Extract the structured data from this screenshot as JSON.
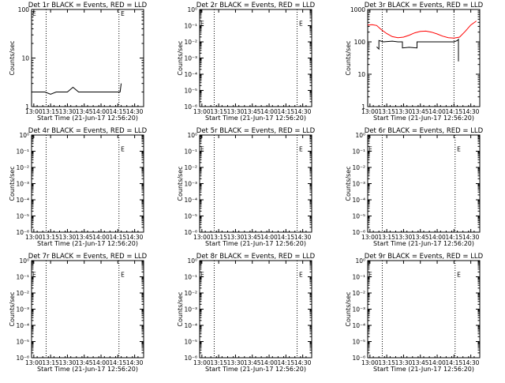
{
  "chart_data": [
    {
      "type": "line",
      "title": "Det 1r BLACK = Events, RED = LLD",
      "xlabel": "Start Time (21-Jun-17 12:56:20)",
      "ylabel": "Counts/sec",
      "xlim": [
        "12:58",
        "14:38"
      ],
      "x_ticks": [
        "13:00",
        "13:15",
        "13:30",
        "13:45",
        "14:00",
        "14:15",
        "14:30"
      ],
      "y_scale": "log",
      "ylim": [
        1,
        100
      ],
      "y_ticks": [
        "1",
        "10",
        "100"
      ],
      "vlines": [
        "13:11",
        "14:16"
      ],
      "e_markers": [
        {
          "x": "12:58",
          "y": 100
        },
        {
          "x": "14:17",
          "y": 100
        }
      ],
      "series": [
        {
          "color": "#000000",
          "x": [
            "12:58",
            "13:00",
            "13:05",
            "13:10",
            "13:15",
            "13:20",
            "13:25",
            "13:30",
            "13:35",
            "13:40",
            "13:45",
            "13:50",
            "13:55",
            "14:00",
            "14:05",
            "14:10",
            "14:15",
            "14:17",
            "14:18"
          ],
          "y": [
            2,
            2,
            2,
            2,
            1.8,
            2,
            2,
            2,
            2.5,
            2,
            2,
            2,
            2,
            2,
            2,
            2,
            2,
            2,
            3
          ]
        },
        {
          "color": "#ff0000",
          "x": [],
          "y": []
        }
      ]
    },
    {
      "type": "line",
      "title": "Det 2r BLACK = Events, RED = LLD",
      "xlabel": "Start Time (21-Jun-17 12:56:20)",
      "ylabel": "Counts/sec",
      "xlim": [
        "12:58",
        "14:38"
      ],
      "x_ticks": [
        "13:00",
        "13:15",
        "13:30",
        "13:45",
        "14:00",
        "14:15",
        "14:30"
      ],
      "y_scale": "log",
      "ylim": [
        1,
        1e-06
      ],
      "y_ticks": [
        "10⁰",
        "10⁻¹",
        "10⁻²",
        "10⁻³",
        "10⁻⁴",
        "10⁻⁵",
        "10⁻⁶"
      ],
      "vlines": [
        "13:11",
        "14:25"
      ],
      "e_markers": [
        {
          "x": "12:58",
          "y": 0.1
        },
        {
          "x": "14:26",
          "y": 0.1
        }
      ],
      "series": []
    },
    {
      "type": "line",
      "title": "Det 3r BLACK = Events, RED = LLD",
      "xlabel": "Start Time (21-Jun-17 12:56:20)",
      "ylabel": "Counts/sec",
      "xlim": [
        "12:58",
        "14:38"
      ],
      "x_ticks": [
        "13:00",
        "13:15",
        "13:30",
        "13:45",
        "14:00",
        "14:15",
        "14:30"
      ],
      "y_scale": "log",
      "ylim": [
        1,
        1000
      ],
      "y_ticks": [
        "1",
        "10",
        "100",
        "1000"
      ],
      "vlines": [
        "13:11",
        "14:15"
      ],
      "e_markers": [],
      "series": [
        {
          "color": "#000000",
          "x": [
            "13:06",
            "13:08",
            "13:08",
            "13:12",
            "13:20",
            "13:25",
            "13:29",
            "13:29",
            "13:35",
            "13:42",
            "13:42",
            "13:50",
            "14:00",
            "14:05",
            "14:10",
            "14:15",
            "14:18",
            "14:19",
            "14:19"
          ],
          "y": [
            70,
            60,
            110,
            100,
            105,
            100,
            100,
            65,
            68,
            65,
            100,
            100,
            100,
            100,
            100,
            100,
            110,
            120,
            25
          ]
        },
        {
          "color": "#ff0000",
          "x": [
            "12:58",
            "13:02",
            "13:06",
            "13:10",
            "13:15",
            "13:20",
            "13:25",
            "13:30",
            "13:35",
            "13:40",
            "13:45",
            "13:50",
            "13:55",
            "14:00",
            "14:05",
            "14:10",
            "14:15",
            "14:20",
            "14:25",
            "14:30",
            "14:35"
          ],
          "y": [
            330,
            340,
            320,
            240,
            180,
            145,
            135,
            140,
            160,
            190,
            210,
            215,
            200,
            175,
            150,
            135,
            130,
            140,
            210,
            330,
            440
          ]
        }
      ]
    },
    {
      "type": "line",
      "title": "Det 4r BLACK = Events, RED = LLD",
      "xlabel": "Start Time (21-Jun-17 12:56:20)",
      "ylabel": "Counts/sec",
      "xlim": [
        "12:58",
        "14:38"
      ],
      "x_ticks": [
        "13:00",
        "13:15",
        "13:30",
        "13:45",
        "14:00",
        "14:15",
        "14:30"
      ],
      "y_scale": "log",
      "ylim": [
        1,
        1e-06
      ],
      "y_ticks": [
        "10⁰",
        "10⁻¹",
        "10⁻²",
        "10⁻³",
        "10⁻⁴",
        "10⁻⁵",
        "10⁻⁶"
      ],
      "vlines": [
        "13:11",
        "14:16"
      ],
      "e_markers": [
        {
          "x": "14:17",
          "y": 0.1
        }
      ],
      "series": []
    },
    {
      "type": "line",
      "title": "Det 5r BLACK = Events, RED = LLD",
      "xlabel": "Start Time (21-Jun-17 12:56:20)",
      "ylabel": "Counts/sec",
      "xlim": [
        "12:58",
        "14:38"
      ],
      "x_ticks": [
        "13:00",
        "13:15",
        "13:30",
        "13:45",
        "14:00",
        "14:15",
        "14:30"
      ],
      "y_scale": "log",
      "ylim": [
        1,
        1e-06
      ],
      "y_ticks": [
        "10⁰",
        "10⁻¹",
        "10⁻²",
        "10⁻³",
        "10⁻⁴",
        "10⁻⁵",
        "10⁻⁶"
      ],
      "vlines": [
        "13:11",
        "14:25"
      ],
      "e_markers": [
        {
          "x": "12:58",
          "y": 0.1
        },
        {
          "x": "14:26",
          "y": 0.1
        }
      ],
      "series": []
    },
    {
      "type": "line",
      "title": "Det 6r BLACK = Events, RED = LLD",
      "xlabel": "Start Time (21-Jun-17 12:56:20)",
      "ylabel": "Counts/sec",
      "xlim": [
        "12:58",
        "14:38"
      ],
      "x_ticks": [
        "13:00",
        "13:15",
        "13:30",
        "13:45",
        "14:00",
        "14:15",
        "14:30"
      ],
      "y_scale": "log",
      "ylim": [
        1,
        1e-06
      ],
      "y_ticks": [
        "10⁰",
        "10⁻¹",
        "10⁻²",
        "10⁻³",
        "10⁻⁴",
        "10⁻⁵",
        "10⁻⁶"
      ],
      "vlines": [
        "13:11",
        "14:16"
      ],
      "e_markers": [
        {
          "x": "12:58",
          "y": 0.1
        },
        {
          "x": "14:17",
          "y": 0.1
        }
      ],
      "series": []
    },
    {
      "type": "line",
      "title": "Det 7r BLACK = Events, RED = LLD",
      "xlabel": "Start Time (21-Jun-17 12:56:20)",
      "ylabel": "Counts/sec",
      "xlim": [
        "12:58",
        "14:38"
      ],
      "x_ticks": [
        "13:00",
        "13:15",
        "13:30",
        "13:45",
        "14:00",
        "14:15",
        "14:30"
      ],
      "y_scale": "log",
      "ylim": [
        1,
        1e-06
      ],
      "y_ticks": [
        "10⁰",
        "10⁻¹",
        "10⁻²",
        "10⁻³",
        "10⁻⁴",
        "10⁻⁵",
        "10⁻⁶"
      ],
      "vlines": [
        "13:11",
        "14:16"
      ],
      "e_markers": [
        {
          "x": "12:58",
          "y": 0.1
        },
        {
          "x": "14:17",
          "y": 0.1
        }
      ],
      "series": []
    },
    {
      "type": "line",
      "title": "Det 8r BLACK = Events, RED = LLD",
      "xlabel": "Start Time (21-Jun-17 12:56:20)",
      "ylabel": "Counts/sec",
      "xlim": [
        "12:58",
        "14:38"
      ],
      "x_ticks": [
        "13:00",
        "13:15",
        "13:30",
        "13:45",
        "14:00",
        "14:15",
        "14:30"
      ],
      "y_scale": "log",
      "ylim": [
        1,
        1e-06
      ],
      "y_ticks": [
        "10⁰",
        "10⁻¹",
        "10⁻²",
        "10⁻³",
        "10⁻⁴",
        "10⁻⁵",
        "10⁻⁶"
      ],
      "vlines": [
        "13:11",
        "14:25"
      ],
      "e_markers": [
        {
          "x": "12:58",
          "y": 0.1
        },
        {
          "x": "14:26",
          "y": 0.1
        }
      ],
      "series": []
    },
    {
      "type": "line",
      "title": "Det 9r BLACK = Events, RED = LLD",
      "xlabel": "Start Time (21-Jun-17 12:56:20)",
      "ylabel": "Counts/sec",
      "xlim": [
        "12:58",
        "14:38"
      ],
      "x_ticks": [
        "13:00",
        "13:15",
        "13:30",
        "13:45",
        "14:00",
        "14:15",
        "14:30"
      ],
      "y_scale": "log",
      "ylim": [
        1,
        1e-06
      ],
      "y_ticks": [
        "10⁰",
        "10⁻¹",
        "10⁻²",
        "10⁻³",
        "10⁻⁴",
        "10⁻⁵",
        "10⁻⁶"
      ],
      "vlines": [
        "13:11",
        "14:16"
      ],
      "e_markers": [
        {
          "x": "12:58",
          "y": 0.1
        },
        {
          "x": "14:17",
          "y": 0.1
        }
      ],
      "series": []
    }
  ]
}
